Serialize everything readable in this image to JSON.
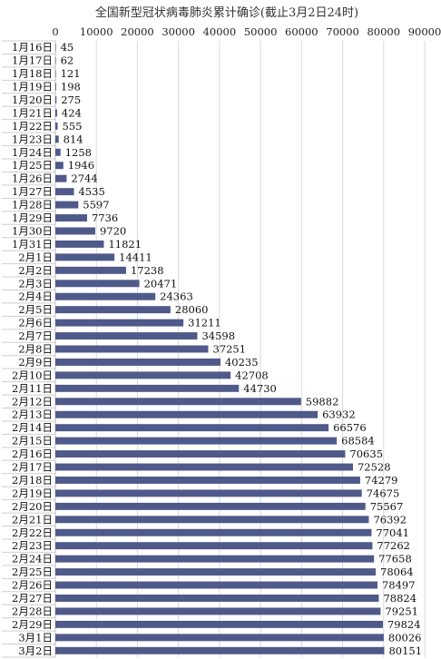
{
  "chart_data": {
    "type": "bar",
    "orientation": "horizontal",
    "title": "全国新型冠状病毒肺炎累计确诊(截止3月2日24时)",
    "xlim": [
      0,
      90000
    ],
    "xticks": [
      "0",
      "10000",
      "20000",
      "30000",
      "40000",
      "50000",
      "60000",
      "70000",
      "80000",
      "90000"
    ],
    "grid": true,
    "bar_color": "#4f5a8a",
    "categories": [
      "1月16日",
      "1月17日",
      "1月18日",
      "1月19日",
      "1月20日",
      "1月21日",
      "1月22日",
      "1月23日",
      "1月24日",
      "1月25日",
      "1月26日",
      "1月27日",
      "1月28日",
      "1月29日",
      "1月30日",
      "1月31日",
      "2月1日",
      "2月2日",
      "2月3日",
      "2月4日",
      "2月5日",
      "2月6日",
      "2月7日",
      "2月8日",
      "2月9日",
      "2月10日",
      "2月11日",
      "2月12日",
      "2月13日",
      "2月14日",
      "2月15日",
      "2月16日",
      "2月17日",
      "2月18日",
      "2月19日",
      "2月20日",
      "2月21日",
      "2月22日",
      "2月23日",
      "2月24日",
      "2月25日",
      "2月26日",
      "2月27日",
      "2月28日",
      "2月29日",
      "3月1日",
      "3月2日"
    ],
    "values": [
      45,
      62,
      121,
      198,
      275,
      424,
      555,
      814,
      1258,
      1946,
      2744,
      4535,
      5597,
      7736,
      9720,
      11821,
      14411,
      17238,
      20471,
      24363,
      28060,
      31211,
      34598,
      37251,
      40235,
      42708,
      44730,
      59882,
      63932,
      66576,
      68584,
      70635,
      72528,
      74279,
      74675,
      75567,
      76392,
      77041,
      77262,
      77658,
      78064,
      78497,
      78824,
      79251,
      79824,
      80026,
      80151
    ]
  }
}
